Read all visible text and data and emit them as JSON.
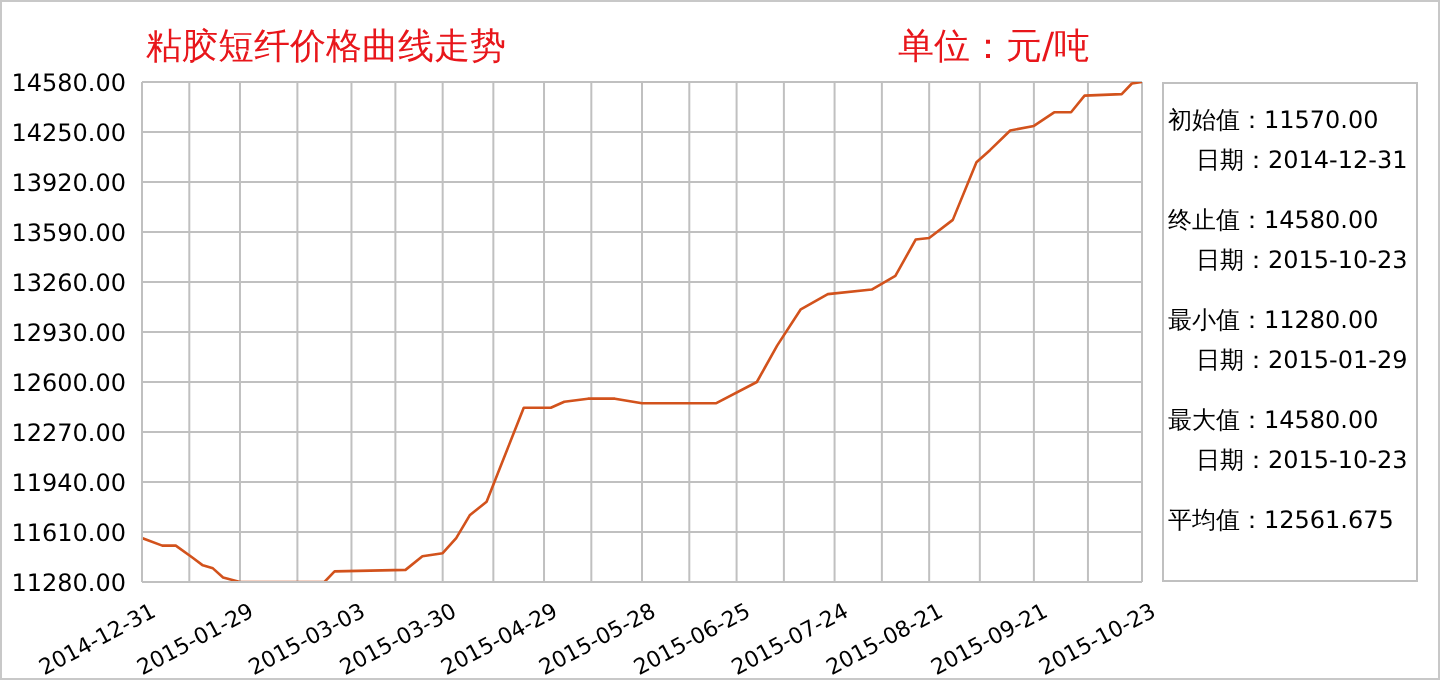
{
  "chart_data": {
    "type": "line",
    "title": "粘胶短纤价格曲线走势",
    "subtitle": "单位：元/吨",
    "annotations": [
      "初始值：11570.00",
      "日期：2014-12-31",
      "终止值：14580.00",
      "日期：2015-10-23",
      "最小值：11280.00",
      "日期：2015-01-29",
      "最大值：14580.00",
      "日期：2015-10-23",
      "平均值：12561.675"
    ],
    "x": [
      "2014-12-31",
      "2015-01-06",
      "2015-01-10",
      "2015-01-15",
      "2015-01-18",
      "2015-01-21",
      "2015-01-24",
      "2015-01-29",
      "2015-02-23",
      "2015-02-26",
      "2015-03-19",
      "2015-03-24",
      "2015-03-30",
      "2015-04-03",
      "2015-04-07",
      "2015-04-12",
      "2015-04-23",
      "2015-05-01",
      "2015-05-05",
      "2015-05-12",
      "2015-05-20",
      "2015-05-28",
      "2015-06-19",
      "2015-07-01",
      "2015-07-07",
      "2015-07-14",
      "2015-07-22",
      "2015-08-04",
      "2015-08-11",
      "2015-08-17",
      "2015-08-21",
      "2015-08-28",
      "2015-09-04",
      "2015-09-08",
      "2015-09-14",
      "2015-09-21",
      "2015-09-27",
      "2015-10-02",
      "2015-10-06",
      "2015-10-17",
      "2015-10-20",
      "2015-10-23"
    ],
    "series": [
      {
        "color": "#d2521c",
        "values": [
          11570,
          11520,
          11520,
          11440,
          11390,
          11370,
          11310,
          11280,
          11280,
          11350,
          11360,
          11450,
          11470,
          11570,
          11720,
          11810,
          12430,
          12430,
          12470,
          12490,
          12490,
          12460,
          12460,
          12600,
          12840,
          13080,
          13180,
          13210,
          13300,
          13540,
          13550,
          13670,
          14050,
          14130,
          14260,
          14290,
          14380,
          14380,
          14490,
          14500,
          14570,
          14580
        ]
      }
    ],
    "xlim": [
      "2014-12-31",
      "2015-10-23"
    ],
    "xticks": [
      {
        "value": "2014-12-31",
        "label": "2014-12-31"
      },
      {
        "value": "2015-01-14",
        "label": null
      },
      {
        "value": "2015-01-29",
        "label": "2015-01-29"
      },
      {
        "value": "2015-02-15",
        "label": null
      },
      {
        "value": "2015-03-03",
        "label": "2015-03-03"
      },
      {
        "value": "2015-03-16",
        "label": null
      },
      {
        "value": "2015-03-30",
        "label": "2015-03-30"
      },
      {
        "value": "2015-04-14",
        "label": null
      },
      {
        "value": "2015-04-29",
        "label": "2015-04-29"
      },
      {
        "value": "2015-05-13",
        "label": null
      },
      {
        "value": "2015-05-28",
        "label": "2015-05-28"
      },
      {
        "value": "2015-06-11",
        "label": null
      },
      {
        "value": "2015-06-25",
        "label": "2015-06-25"
      },
      {
        "value": "2015-07-09",
        "label": null
      },
      {
        "value": "2015-07-24",
        "label": "2015-07-24"
      },
      {
        "value": "2015-08-07",
        "label": null
      },
      {
        "value": "2015-08-21",
        "label": "2015-08-21"
      },
      {
        "value": "2015-09-05",
        "label": null
      },
      {
        "value": "2015-09-21",
        "label": "2015-09-21"
      },
      {
        "value": "2015-10-07",
        "label": null
      },
      {
        "value": "2015-10-23",
        "label": "2015-10-23"
      }
    ],
    "ylim": [
      11280,
      14580
    ],
    "yticks": [
      {
        "value": 11280,
        "label": "11280.00"
      },
      {
        "value": 11610,
        "label": "11610.00"
      },
      {
        "value": 11940,
        "label": "11940.00"
      },
      {
        "value": 12270,
        "label": "12270.00"
      },
      {
        "value": 12600,
        "label": "12600.00"
      },
      {
        "value": 12930,
        "label": "12930.00"
      },
      {
        "value": 13260,
        "label": "13260.00"
      },
      {
        "value": 13590,
        "label": "13590.00"
      },
      {
        "value": 13920,
        "label": "13920.00"
      },
      {
        "value": 14250,
        "label": "14250.00"
      },
      {
        "value": 14580,
        "label": "14580.00"
      }
    ],
    "grid": true,
    "legend": false,
    "marker": "none",
    "line_style": "solid"
  }
}
